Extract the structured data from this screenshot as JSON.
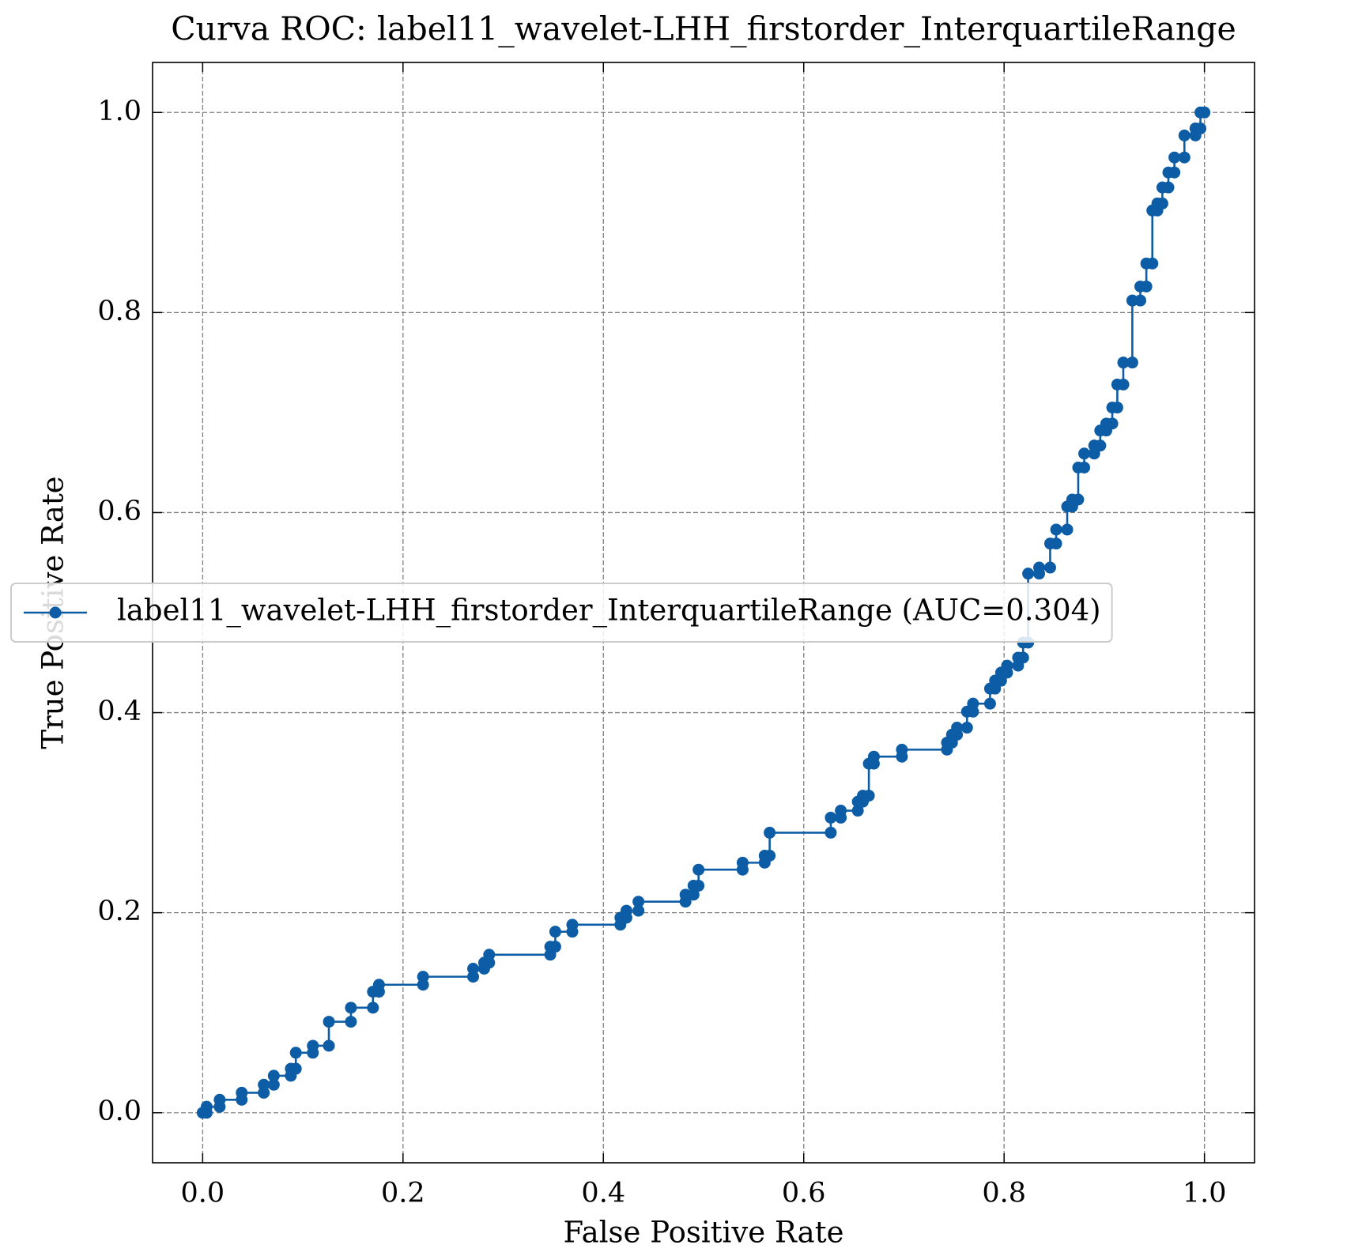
{
  "chart_data": {
    "type": "line",
    "title": "Curva ROC: label11_wavelet-LHH_firstorder_InterquartileRange",
    "x_label": "False Positive Rate",
    "y_label": "True Positive Rate",
    "xlim": [
      -0.05,
      1.05
    ],
    "ylim": [
      -0.05,
      1.05
    ],
    "xticks": [
      {
        "value": 0,
        "label": "0.0"
      },
      0.2,
      0.4,
      0.6,
      0.8,
      {
        "value": 1,
        "label": "1.0"
      }
    ],
    "yticks": [
      {
        "value": 0,
        "label": "0.0"
      },
      0.2,
      0.4,
      0.6,
      0.8,
      {
        "value": 1,
        "label": "1.0"
      }
    ],
    "grid": true,
    "legend": "center left",
    "x": [
      0,
      0.004,
      0.004,
      0.017,
      0.017,
      0.039,
      0.039,
      0.061,
      0.061,
      0.071,
      0.071,
      0.088,
      0.088,
      0.093,
      0.093,
      0.11,
      0.11,
      0.126,
      0.126,
      0.148,
      0.148,
      0.17,
      0.17,
      0.176,
      0.176,
      0.22,
      0.22,
      0.27,
      0.27,
      0.281,
      0.281,
      0.286,
      0.286,
      0.347,
      0.347,
      0.352,
      0.352,
      0.369,
      0.369,
      0.417,
      0.417,
      0.423,
      0.423,
      0.435,
      0.435,
      0.482,
      0.482,
      0.49,
      0.49,
      0.495,
      0.495,
      0.539,
      0.539,
      0.561,
      0.561,
      0.566,
      0.566,
      0.627,
      0.627,
      0.637,
      0.637,
      0.654,
      0.654,
      0.659,
      0.659,
      0.665,
      0.665,
      0.67,
      0.67,
      0.698,
      0.698,
      0.743,
      0.743,
      0.748,
      0.748,
      0.753,
      0.753,
      0.763,
      0.763,
      0.769,
      0.769,
      0.786,
      0.786,
      0.791,
      0.791,
      0.797,
      0.797,
      0.803,
      0.803,
      0.814,
      0.814,
      0.819,
      0.819,
      0.824,
      0.824,
      0.835,
      0.835,
      0.846,
      0.846,
      0.852,
      0.852,
      0.863,
      0.863,
      0.868,
      0.868,
      0.874,
      0.874,
      0.88,
      0.88,
      0.89,
      0.89,
      0.896,
      0.896,
      0.902,
      0.902,
      0.908,
      0.908,
      0.913,
      0.913,
      0.919,
      0.919,
      0.928,
      0.928,
      0.936,
      0.936,
      0.942,
      0.942,
      0.948,
      0.948,
      0.953,
      0.953,
      0.958,
      0.958,
      0.964,
      0.964,
      0.97,
      0.97,
      0.98,
      0.98,
      0.991,
      0.991,
      0.996,
      0.996,
      1
    ],
    "series": [
      {
        "name": "label11_wavelet-LHH_firstorder_InterquartileRange (AUC=0.304)",
        "color": "#0c5da5",
        "values": [
          0,
          0,
          0.006,
          0.006,
          0.013,
          0.013,
          0.02,
          0.02,
          0.028,
          0.028,
          0.037,
          0.037,
          0.044,
          0.044,
          0.06,
          0.06,
          0.067,
          0.067,
          0.091,
          0.091,
          0.105,
          0.105,
          0.121,
          0.121,
          0.128,
          0.128,
          0.136,
          0.136,
          0.144,
          0.144,
          0.15,
          0.15,
          0.158,
          0.158,
          0.166,
          0.166,
          0.181,
          0.181,
          0.188,
          0.188,
          0.195,
          0.195,
          0.202,
          0.202,
          0.211,
          0.211,
          0.218,
          0.218,
          0.227,
          0.227,
          0.243,
          0.243,
          0.25,
          0.25,
          0.257,
          0.257,
          0.28,
          0.28,
          0.295,
          0.295,
          0.302,
          0.302,
          0.311,
          0.311,
          0.317,
          0.317,
          0.349,
          0.349,
          0.356,
          0.356,
          0.363,
          0.363,
          0.37,
          0.37,
          0.378,
          0.378,
          0.385,
          0.385,
          0.401,
          0.401,
          0.409,
          0.409,
          0.424,
          0.424,
          0.432,
          0.432,
          0.44,
          0.44,
          0.447,
          0.447,
          0.455,
          0.455,
          0.47,
          0.47,
          0.539,
          0.539,
          0.545,
          0.545,
          0.569,
          0.569,
          0.583,
          0.583,
          0.606,
          0.606,
          0.613,
          0.613,
          0.645,
          0.645,
          0.659,
          0.659,
          0.667,
          0.667,
          0.682,
          0.682,
          0.689,
          0.689,
          0.705,
          0.705,
          0.728,
          0.728,
          0.75,
          0.75,
          0.812,
          0.812,
          0.826,
          0.826,
          0.849,
          0.849,
          0.902,
          0.902,
          0.909,
          0.909,
          0.925,
          0.925,
          0.94,
          0.94,
          0.955,
          0.955,
          0.977,
          0.977,
          0.984,
          0.984,
          1,
          1
        ]
      }
    ]
  }
}
